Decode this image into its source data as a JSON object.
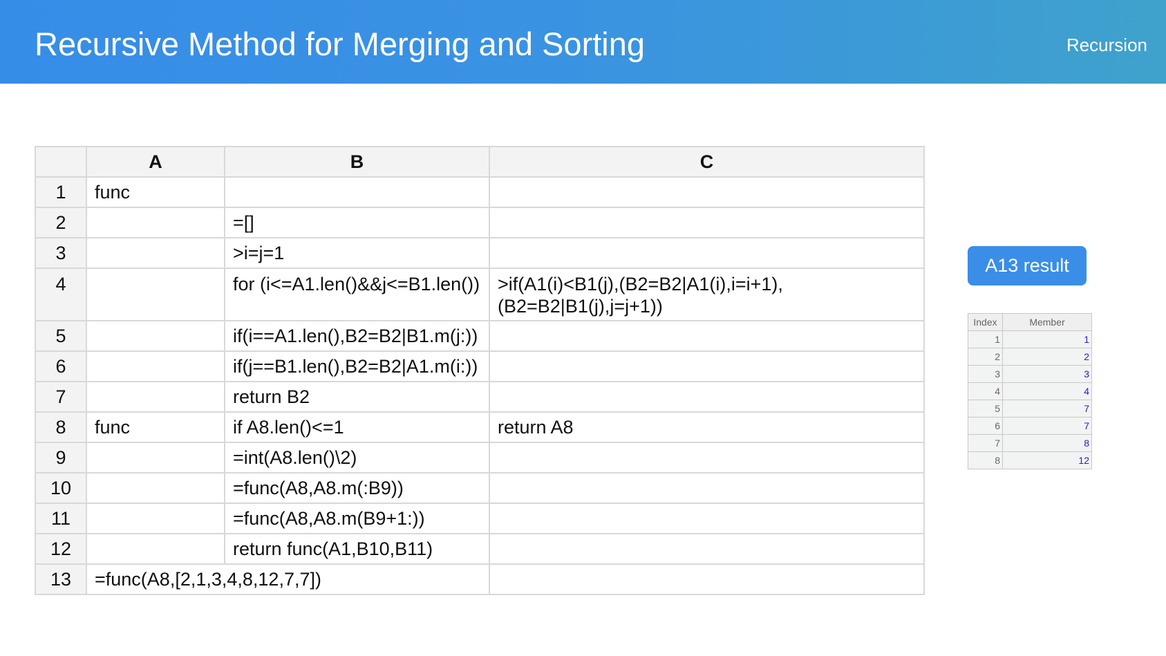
{
  "header": {
    "title": "Recursive Method for Merging and Sorting",
    "tag": "Recursion"
  },
  "grid": {
    "columns": [
      "A",
      "B",
      "C"
    ],
    "rows": [
      {
        "num": "1",
        "A": "func",
        "B": "",
        "C": ""
      },
      {
        "num": "2",
        "A": "",
        "B": "=[]",
        "C": ""
      },
      {
        "num": "3",
        "A": "",
        "B": ">i=j=1",
        "C": ""
      },
      {
        "num": "4",
        "A": "",
        "B": "for (i<=A1.len()&&j<=B1.len())",
        "C": ">if(A1(i)<B1(j),(B2=B2|A1(i),i=i+1),(B2=B2|B1(j),j=j+1))"
      },
      {
        "num": "5",
        "A": "",
        "B": "if(i==A1.len(),B2=B2|B1.m(j:))",
        "C": ""
      },
      {
        "num": "6",
        "A": "",
        "B": "if(j==B1.len(),B2=B2|A1.m(i:))",
        "C": ""
      },
      {
        "num": "7",
        "A": "",
        "B": "return B2",
        "C": ""
      },
      {
        "num": "8",
        "A": "func",
        "B": "if A8.len()<=1",
        "C": "return A8"
      },
      {
        "num": "9",
        "A": "",
        "B": "=int(A8.len()\\2)",
        "C": ""
      },
      {
        "num": "10",
        "A": "",
        "B": "=func(A8,A8.m(:B9))",
        "C": ""
      },
      {
        "num": "11",
        "A": "",
        "B": "=func(A8,A8.m(B9+1:))",
        "C": ""
      },
      {
        "num": "12",
        "A": "",
        "B": "return func(A1,B10,B11)",
        "C": ""
      },
      {
        "num": "13",
        "A": "=func(A8,[2,1,3,4,8,12,7,7])",
        "B": "",
        "C": ""
      }
    ]
  },
  "result": {
    "button_label": "A13 result",
    "headers": [
      "Index",
      "Member"
    ],
    "rows": [
      [
        "1",
        "1"
      ],
      [
        "2",
        "2"
      ],
      [
        "3",
        "3"
      ],
      [
        "4",
        "4"
      ],
      [
        "5",
        "7"
      ],
      [
        "6",
        "7"
      ],
      [
        "7",
        "8"
      ],
      [
        "8",
        "12"
      ]
    ]
  },
  "colors": {
    "banner": "#368de8",
    "button": "#3a8ee8",
    "member_text": "#2222cc"
  }
}
